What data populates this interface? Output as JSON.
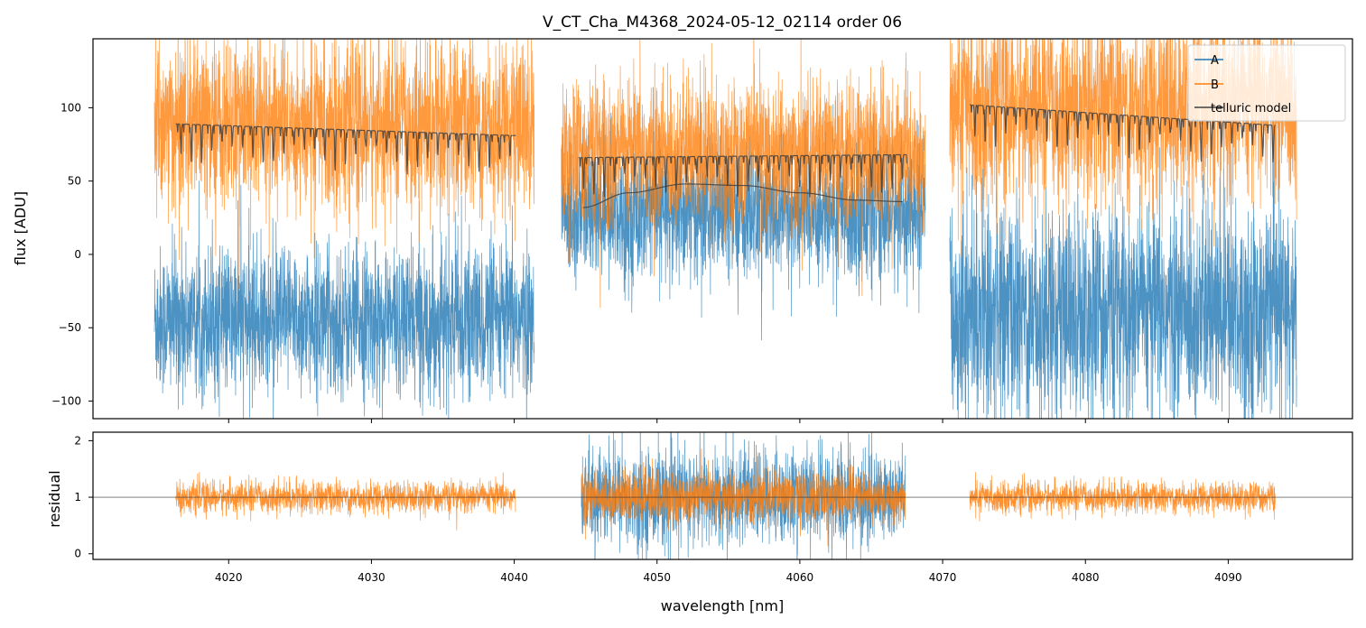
{
  "chart_data": [
    {
      "type": "line",
      "title": "V_CT_Cha_M4368_2024-05-12_02114  order 06",
      "xlabel": "",
      "ylabel": "flux [ADU]",
      "xlim": [
        4010.5,
        4098.7
      ],
      "ylim": [
        -112,
        147
      ],
      "yticks": [
        -100,
        -50,
        0,
        50,
        100
      ],
      "yticklabels": [
        "−100",
        "−50",
        "0",
        "50",
        "100"
      ],
      "xticks": [
        4020,
        4030,
        4040,
        4050,
        4060,
        4070,
        4080,
        4090
      ],
      "legend": {
        "position": "top-right",
        "entries": [
          {
            "label": "A",
            "color": "#1f77b4"
          },
          {
            "label": "B",
            "color": "#ff7f0e"
          },
          {
            "label": "telluric model",
            "color": "#404040"
          }
        ]
      },
      "segments": [
        {
          "x_range": [
            4014.8,
            4041.4
          ],
          "A_level": -45,
          "A_noise": 50,
          "B_level": 88,
          "B_noise": 58,
          "telluric_x_range": [
            4016.3,
            4040.1
          ],
          "telluric_start": 89,
          "telluric_end": 81
        },
        {
          "x_range": [
            4043.3,
            4068.8
          ],
          "A_level": 28,
          "A_noise": 45,
          "B_level": 68,
          "B_noise": 50,
          "telluric_x_range": [
            4044.5,
            4067.5
          ],
          "telluric_start": 66,
          "telluric_end": 68,
          "continuum_A": {
            "x": [
              4044.8,
              4048,
              4052,
              4056,
              4060,
              4064,
              4067.2
            ],
            "y": [
              32,
              42,
              48,
              47,
              42,
              37,
              36
            ]
          }
        },
        {
          "x_range": [
            4070.5,
            4094.8
          ],
          "A_level": -40,
          "A_noise": 72,
          "B_level": 100,
          "B_noise": 65,
          "telluric_x_range": [
            4071.9,
            4093.3
          ],
          "telluric_start": 102,
          "telluric_end": 88
        }
      ]
    },
    {
      "type": "line",
      "title": "",
      "xlabel": "wavelength [nm]",
      "ylabel": "residual",
      "xlim": [
        4010.5,
        4098.7
      ],
      "ylim": [
        -0.1,
        2.15
      ],
      "yticks": [
        0,
        1,
        2
      ],
      "yticklabels": [
        "0",
        "1",
        "2"
      ],
      "xticks": [
        4020,
        4030,
        4040,
        4050,
        4060,
        4070,
        4080,
        4090
      ],
      "xticklabels": [
        "4020",
        "4030",
        "4040",
        "4050",
        "4060",
        "4070",
        "4080",
        "4090"
      ],
      "reference_line": 1,
      "segments": [
        {
          "x_range": [
            4016.3,
            4040.1
          ],
          "B_level": 1.0,
          "B_noise": 0.28
        },
        {
          "x_range": [
            4044.7,
            4067.4
          ],
          "A_level": 1.0,
          "A_noise": 0.85,
          "B_level": 1.0,
          "B_noise": 0.45
        },
        {
          "x_range": [
            4071.9,
            4093.3
          ],
          "B_level": 1.0,
          "B_noise": 0.27
        }
      ]
    }
  ]
}
